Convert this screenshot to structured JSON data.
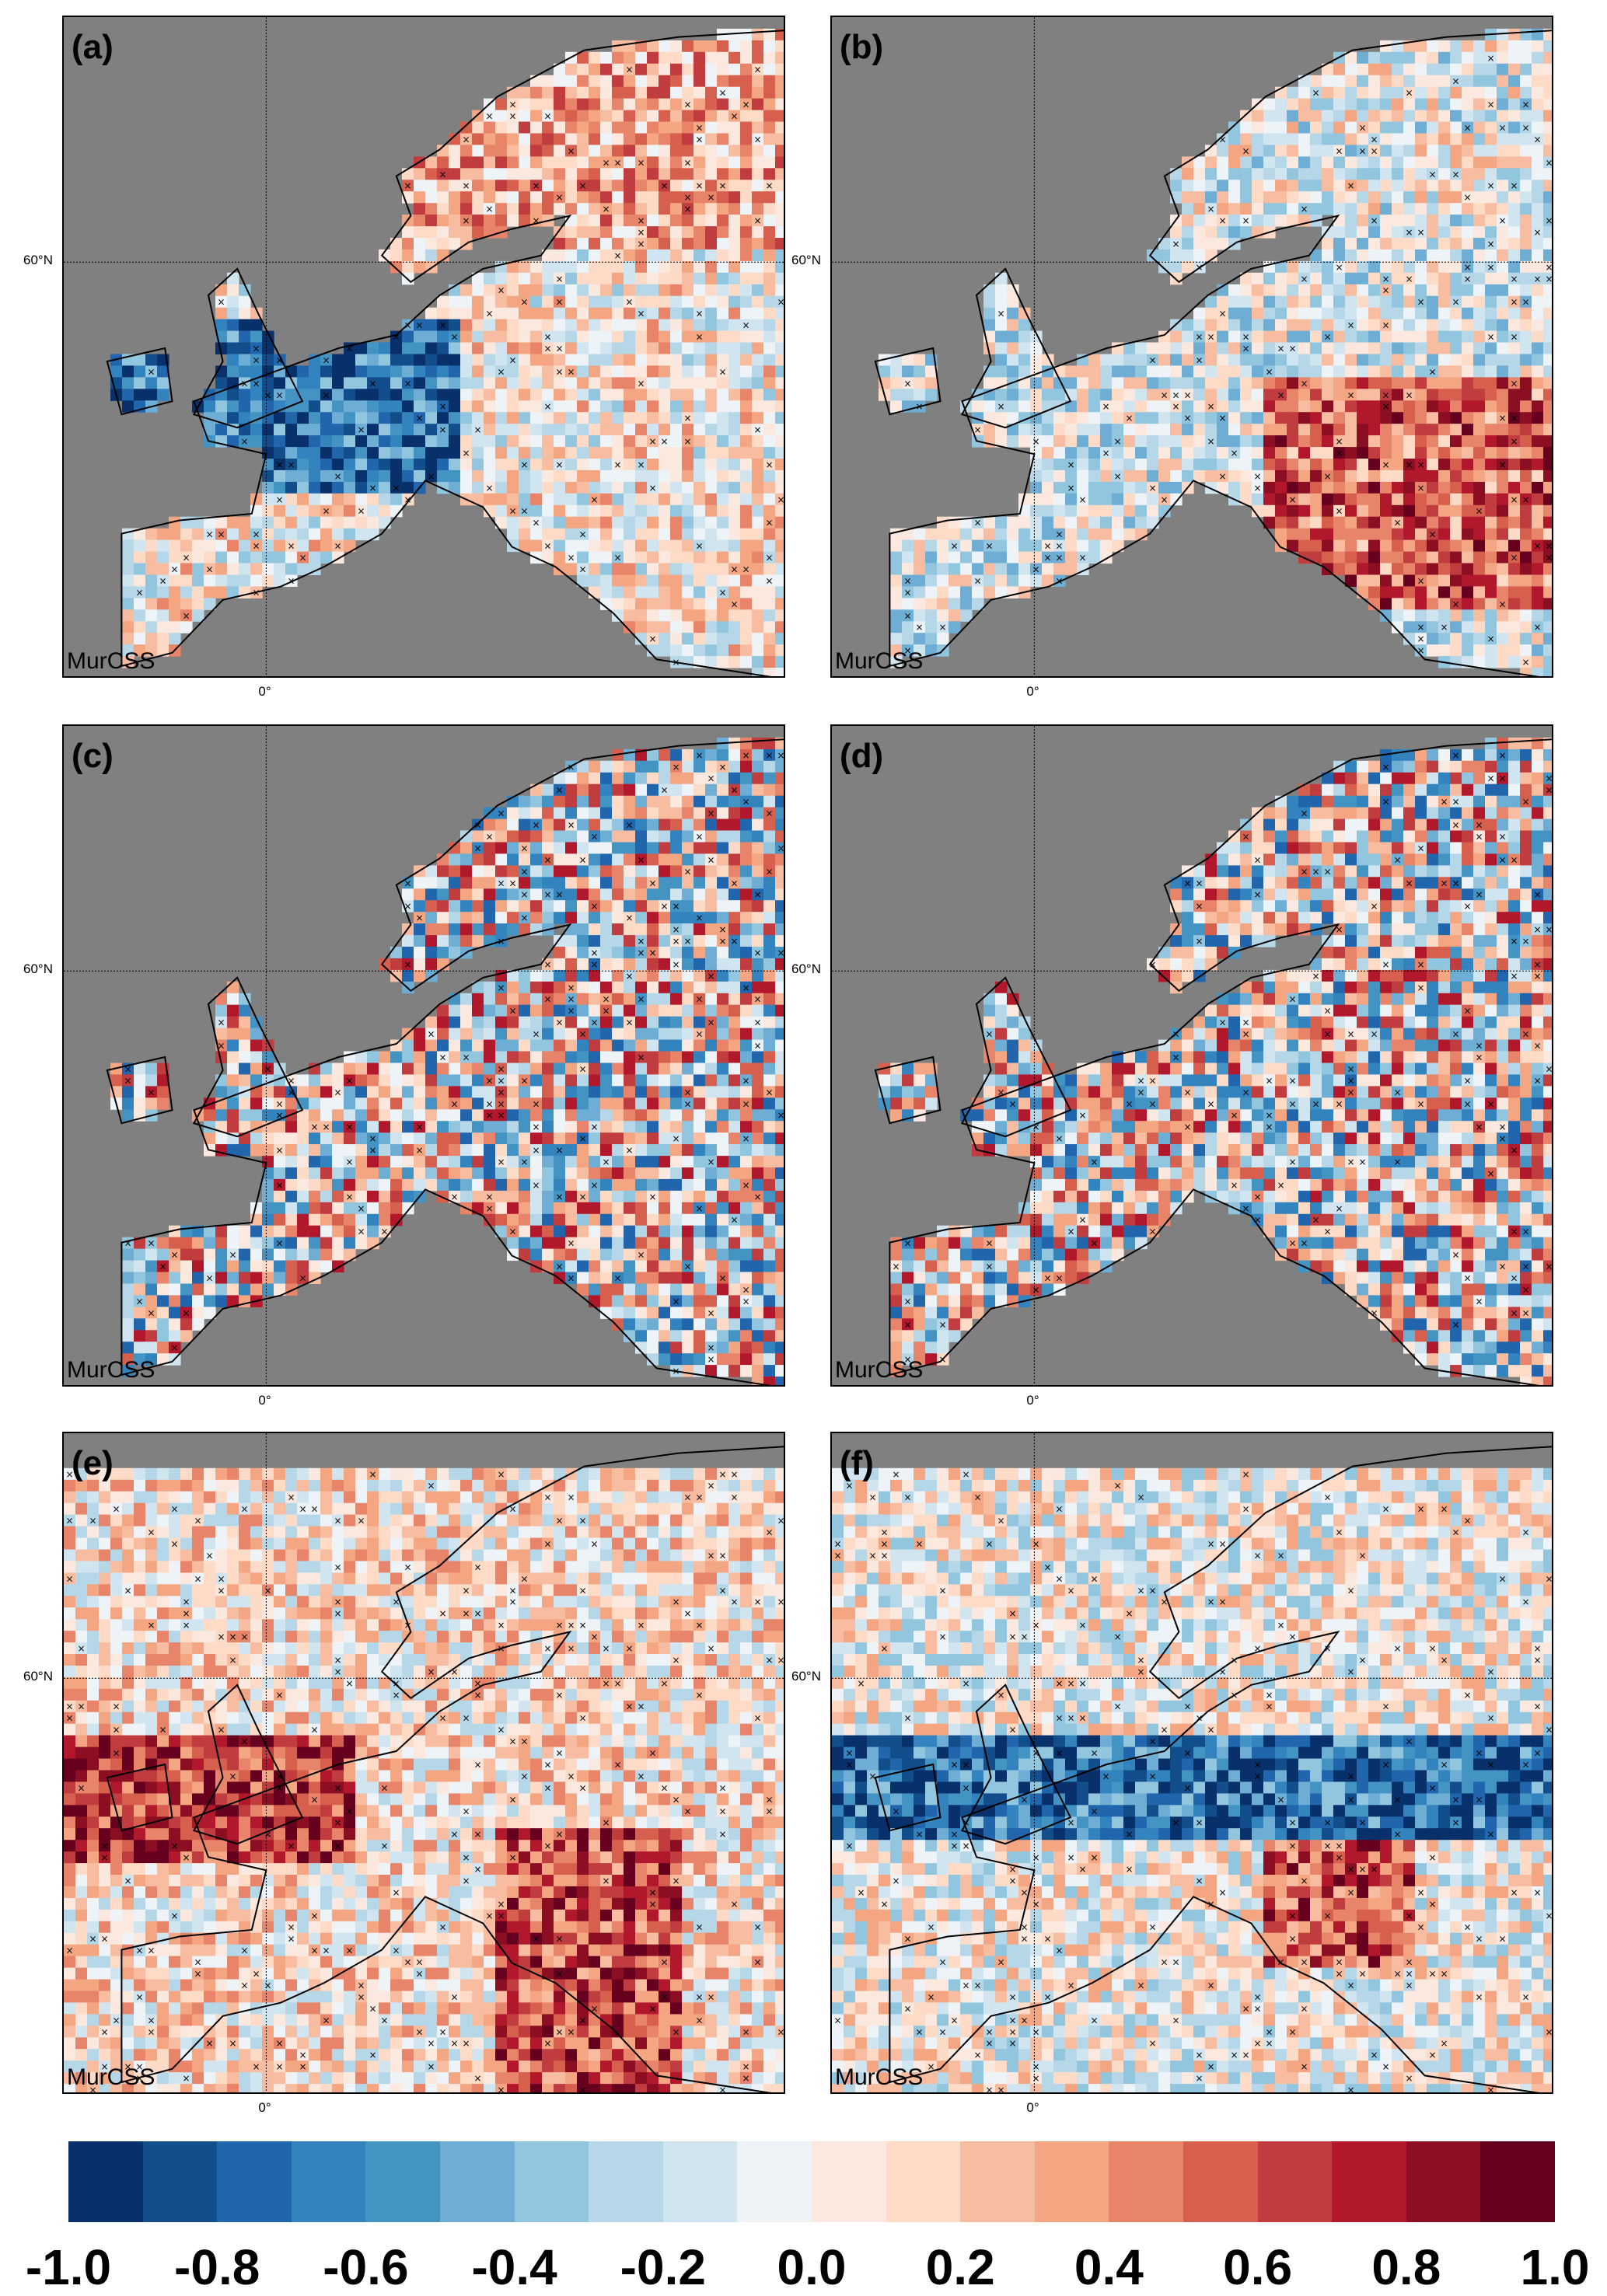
{
  "chart_data": {
    "type": "heatmap",
    "panels": [
      {
        "label": "(a)",
        "method_label": "MurCSS",
        "lat_label": "60°N",
        "lon_label": "0°",
        "grid": true
      },
      {
        "label": "(b)",
        "method_label": "MurCSS",
        "lat_label": "60°N",
        "lon_label": "0°",
        "grid": true
      },
      {
        "label": "(c)",
        "method_label": "MurCSS",
        "lat_label": "60°N",
        "lon_label": "0°",
        "grid": true
      },
      {
        "label": "(d)",
        "method_label": "MurCSS",
        "lat_label": "60°N",
        "lon_label": "0°",
        "grid": true
      },
      {
        "label": "(e)",
        "method_label": "MurCSS",
        "lat_label": "60°N",
        "lon_label": "0°",
        "grid": true
      },
      {
        "label": "(f)",
        "method_label": "MurCSS",
        "lat_label": "60°N",
        "lon_label": "0°",
        "grid": true
      }
    ],
    "colorbar": {
      "range": [
        -1.0,
        1.0
      ],
      "ticks": [
        "-1.0",
        "-0.8",
        "-0.6",
        "-0.4",
        "-0.2",
        "0.0",
        "0.2",
        "0.4",
        "0.6",
        "0.8",
        "1.0"
      ],
      "colors": [
        "#08306b",
        "#124e8c",
        "#2166ac",
        "#3383be",
        "#4393c3",
        "#6eaed4",
        "#92c5de",
        "#b6d7e8",
        "#d1e5f0",
        "#eef3f7",
        "#fbe9df",
        "#fddbc7",
        "#f8bda0",
        "#f4a582",
        "#e7846a",
        "#d6604d",
        "#c03c3e",
        "#b2182b",
        "#8b0e22",
        "#67001f"
      ]
    }
  }
}
